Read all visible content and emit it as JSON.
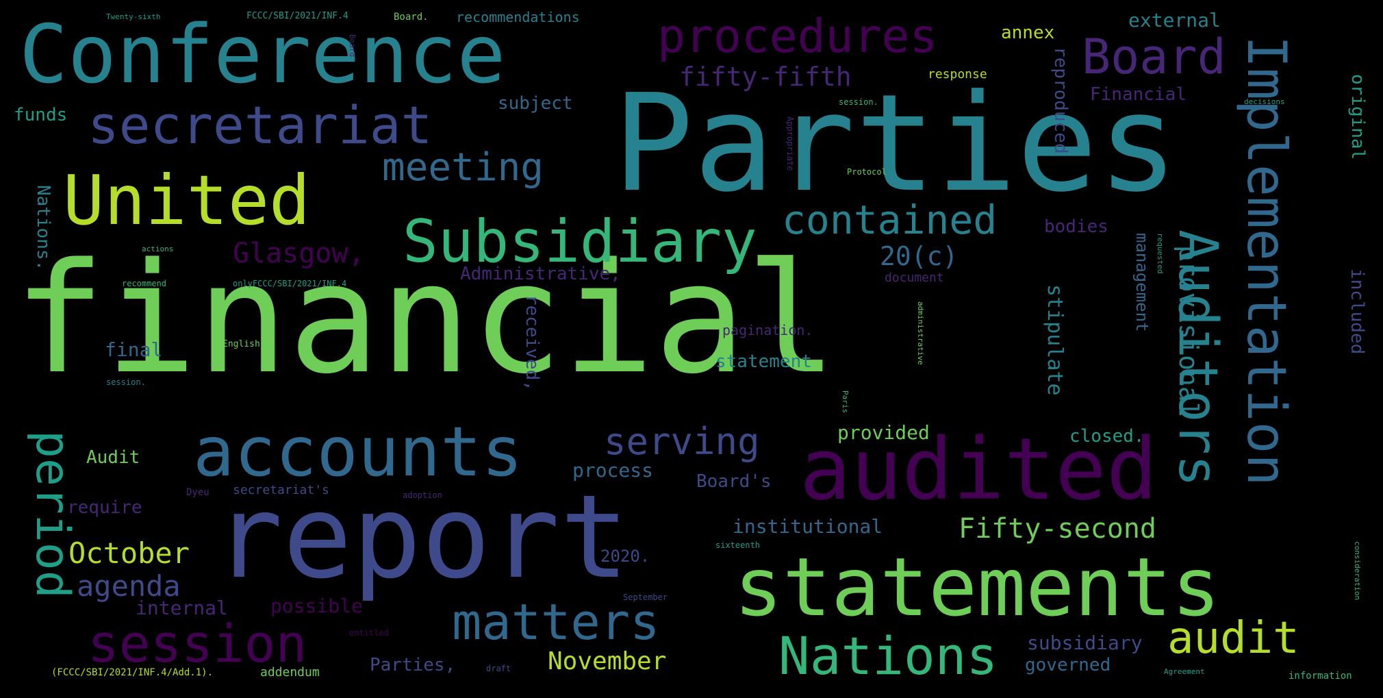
{
  "background_color": "#000000",
  "palette": [
    "#440154",
    "#482677",
    "#3e4a89",
    "#31688e",
    "#26828e",
    "#1f9e89",
    "#35b779",
    "#6ece58",
    "#b5de2b",
    "#fde725"
  ],
  "words": [
    {
      "text": "financial",
      "color": "#6ece58"
    },
    {
      "text": "Parties",
      "color": "#26828e"
    },
    {
      "text": "report",
      "color": "#3e4a89"
    },
    {
      "text": "Conference",
      "color": "#26828e"
    },
    {
      "text": "audited",
      "color": "#440154"
    },
    {
      "text": "statements",
      "color": "#6ece58"
    },
    {
      "text": "accounts",
      "color": "#31688e"
    },
    {
      "text": "United",
      "color": "#b5de2b"
    },
    {
      "text": "Subsidiary",
      "color": "#35b779"
    },
    {
      "text": "Implementation",
      "color": "#31688e"
    },
    {
      "text": "Auditors",
      "color": "#26828e"
    },
    {
      "text": "Nations",
      "color": "#35b779"
    },
    {
      "text": "session",
      "color": "#440154"
    },
    {
      "text": "secretariat",
      "color": "#3e4a89"
    },
    {
      "text": "procedures",
      "color": "#440154"
    },
    {
      "text": "Board",
      "color": "#482677"
    },
    {
      "text": "matters",
      "color": "#31688e"
    },
    {
      "text": "period",
      "color": "#1f9e89"
    },
    {
      "text": "contained",
      "color": "#26828e"
    },
    {
      "text": "serving",
      "color": "#3e4a89"
    },
    {
      "text": "meeting",
      "color": "#31688e"
    },
    {
      "text": "audit",
      "color": "#b5de2b"
    },
    {
      "text": "Fifty-second",
      "color": "#6ece58"
    },
    {
      "text": "October",
      "color": "#b5de2b"
    },
    {
      "text": "November",
      "color": "#b5de2b"
    },
    {
      "text": "agenda",
      "color": "#3e4a89"
    },
    {
      "text": "Glasgow,",
      "color": "#440154"
    },
    {
      "text": "fifty-fifth",
      "color": "#482677"
    },
    {
      "text": "provisional",
      "color": "#26828e"
    },
    {
      "text": "20(c)",
      "color": "#31688e"
    },
    {
      "text": "external",
      "color": "#26828e"
    },
    {
      "text": "annex",
      "color": "#b5de2b"
    },
    {
      "text": "Administrative,",
      "color": "#482677"
    },
    {
      "text": "subject",
      "color": "#31688e"
    },
    {
      "text": "funds",
      "color": "#1f9e89"
    },
    {
      "text": "Financial",
      "color": "#482677"
    },
    {
      "text": "response",
      "color": "#b5de2b"
    },
    {
      "text": "reproduced",
      "color": "#3e4a89"
    },
    {
      "text": "original",
      "color": "#1f9e89"
    },
    {
      "text": "included",
      "color": "#3e4a89"
    },
    {
      "text": "bodies",
      "color": "#482677"
    },
    {
      "text": "management",
      "color": "#31688e"
    },
    {
      "text": "stipulate",
      "color": "#26828e"
    },
    {
      "text": "received,",
      "color": "#3e4a89"
    },
    {
      "text": "statement",
      "color": "#26828e"
    },
    {
      "text": "pagination.",
      "color": "#482677"
    },
    {
      "text": "document",
      "color": "#482677"
    },
    {
      "text": "final",
      "color": "#31688e"
    },
    {
      "text": "provided",
      "color": "#6ece58"
    },
    {
      "text": "closed.",
      "color": "#1f9e89"
    },
    {
      "text": "Audit",
      "color": "#6ece58"
    },
    {
      "text": "process",
      "color": "#31688e"
    },
    {
      "text": "Board's",
      "color": "#3e4a89"
    },
    {
      "text": "require",
      "color": "#482677"
    },
    {
      "text": "institutional",
      "color": "#31688e"
    },
    {
      "text": "2020.",
      "color": "#3e4a89"
    },
    {
      "text": "internal",
      "color": "#482677"
    },
    {
      "text": "possible",
      "color": "#440154"
    },
    {
      "text": "subsidiary",
      "color": "#3e4a89"
    },
    {
      "text": "governed",
      "color": "#31688e"
    },
    {
      "text": "Parties,",
      "color": "#3e4a89"
    },
    {
      "text": "addendum",
      "color": "#6ece58"
    },
    {
      "text": "Nations.",
      "color": "#26828e"
    },
    {
      "text": "recommendations",
      "color": "#26828e"
    },
    {
      "text": "Board.",
      "color": "#6ece58"
    },
    {
      "text": "FCCC/SBI/2021/INF.4",
      "color": "#1f9e89"
    },
    {
      "text": "Twenty-sixth",
      "color": "#1f9e89"
    },
    {
      "text": "session.",
      "color": "#35b779"
    },
    {
      "text": "decisions",
      "color": "#1f9e89"
    },
    {
      "text": "Protocol",
      "color": "#6ece58"
    },
    {
      "text": "actions",
      "color": "#35b779"
    },
    {
      "text": "recommend",
      "color": "#35b779"
    },
    {
      "text": "onlyFCCC/SBI/2021/INF.4",
      "color": "#1f9e89"
    },
    {
      "text": "English",
      "color": "#6ece58"
    },
    {
      "text": "session.",
      "color": "#26828e"
    },
    {
      "text": "Paris",
      "color": "#35b779"
    },
    {
      "text": "Agreement",
      "color": "#1f9e89"
    },
    {
      "text": "information",
      "color": "#35b779"
    },
    {
      "text": "September",
      "color": "#3e4a89"
    },
    {
      "text": "entitled",
      "color": "#440154"
    },
    {
      "text": "adoption",
      "color": "#482677"
    },
    {
      "text": "Dyeu",
      "color": "#482677"
    },
    {
      "text": "secretariat's",
      "color": "#3e4a89"
    },
    {
      "text": "draft",
      "color": "#3e4a89"
    },
    {
      "text": "(FCCC/SBI/2021/INF.4/Add.1).",
      "color": "#b5de2b"
    },
    {
      "text": "sixteenth",
      "color": "#1f9e89"
    },
    {
      "text": "Appropriate",
      "color": "#482677"
    },
    {
      "text": "Board",
      "color": "#482677"
    },
    {
      "text": "administrative",
      "color": "#6ece58"
    },
    {
      "text": "consideration",
      "color": "#35b779"
    },
    {
      "text": "requested",
      "color": "#1f9e89"
    }
  ]
}
